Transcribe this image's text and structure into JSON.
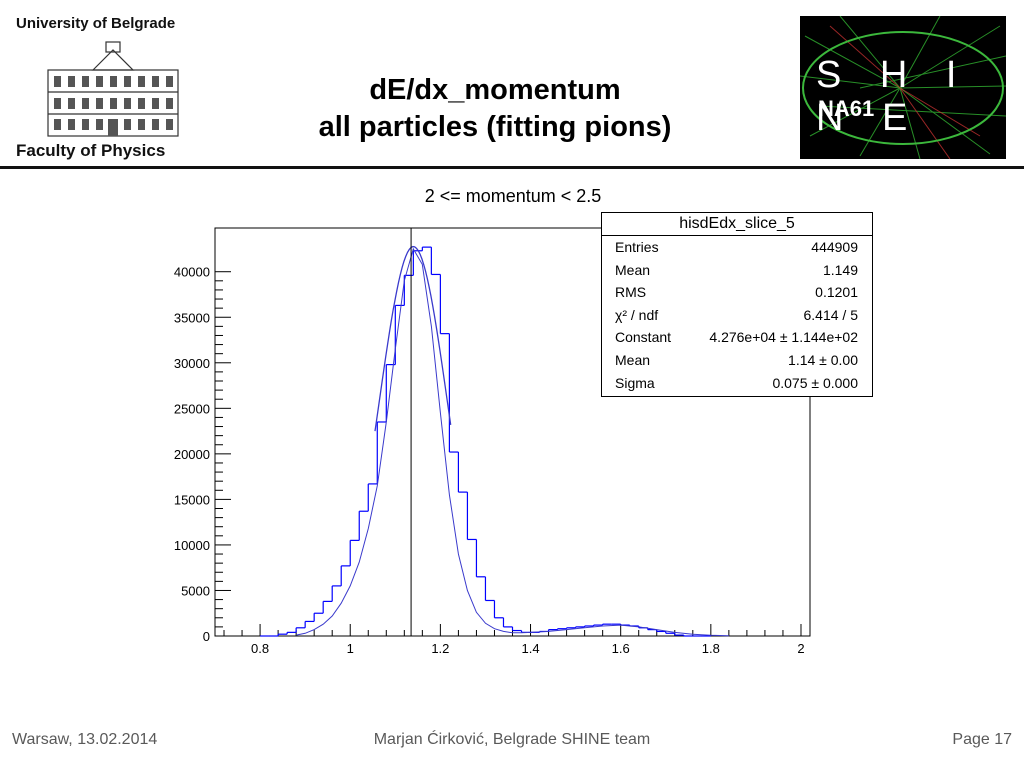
{
  "header": {
    "university": "University of Belgrade",
    "faculty": "Faculty of Physics",
    "title_line1": "dE/dx_momentum",
    "title_line2": "all particles (fitting pions)",
    "logo_main": "S H I N E",
    "logo_sub": "NA61"
  },
  "stats_box": {
    "title": "hisdEdx_slice_5",
    "rows": [
      {
        "label": "Entries",
        "value": "444909"
      },
      {
        "label": "Mean",
        "value": "1.149"
      },
      {
        "label": "RMS",
        "value": "0.1201"
      },
      {
        "label": "χ² / ndf",
        "value": "6.414 / 5"
      },
      {
        "label": "Constant",
        "value": "4.276e+04 ± 1.144e+02"
      },
      {
        "label": "Mean",
        "value": "1.14 ± 0.00"
      },
      {
        "label": "Sigma",
        "value": "0.075 ± 0.000"
      }
    ]
  },
  "footer": {
    "left": "Warsaw, 13.02.2014",
    "center": "Marjan Ćirković, Belgrade SHINE team",
    "right": "Page 17"
  },
  "chart_data": {
    "type": "bar",
    "title": "2 <= momentum < 2.5",
    "xlabel": "",
    "ylabel": "",
    "xlim": [
      0.7,
      2.02
    ],
    "ylim": [
      0,
      44800
    ],
    "x_ticks": [
      0.8,
      1,
      1.2,
      1.4,
      1.6,
      1.8,
      2
    ],
    "x_tick_labels": [
      "0.8",
      "1",
      "1.2",
      "1.4",
      "1.6",
      "1.8",
      "2"
    ],
    "y_ticks": [
      0,
      5000,
      10000,
      15000,
      20000,
      25000,
      30000,
      35000,
      40000
    ],
    "y_tick_labels": [
      "0",
      "5000",
      "10000",
      "15000",
      "20000",
      "25000",
      "30000",
      "35000",
      "40000"
    ],
    "histogram": {
      "bin_width": 0.02,
      "bin_start": 0.8,
      "values": [
        0,
        0,
        200,
        400,
        900,
        1600,
        2500,
        3800,
        5500,
        7700,
        10500,
        13700,
        16700,
        23500,
        29800,
        36300,
        39600,
        42300,
        42700,
        39700,
        33200,
        20200,
        15800,
        10600,
        6500,
        3900,
        2000,
        1000,
        600,
        400,
        400,
        500,
        700,
        800,
        900,
        1000,
        1100,
        1200,
        1300,
        1300,
        1200,
        1100,
        900,
        700,
        500,
        300,
        100,
        0,
        0,
        0
      ]
    },
    "fit": {
      "function": "gaus",
      "constant": 42760,
      "mean": 1.14,
      "sigma": 0.075,
      "x_range": [
        1.055,
        1.225
      ]
    },
    "background_curve": {
      "x": [
        0.88,
        0.9,
        0.92,
        0.94,
        0.96,
        0.98,
        1.0,
        1.02,
        1.04,
        1.06,
        1.08,
        1.1,
        1.12,
        1.14,
        1.16,
        1.18,
        1.2,
        1.22,
        1.24,
        1.26,
        1.28,
        1.3,
        1.32,
        1.34,
        1.36,
        1.38,
        1.4,
        1.44,
        1.48,
        1.52,
        1.56,
        1.6,
        1.64,
        1.68,
        1.72,
        1.76,
        1.8,
        1.84
      ],
      "y": [
        100,
        300,
        700,
        1300,
        2200,
        3600,
        5500,
        8100,
        11800,
        16500,
        23500,
        31500,
        39000,
        42500,
        40800,
        34000,
        24500,
        15500,
        9000,
        5000,
        2600,
        1400,
        800,
        500,
        350,
        350,
        400,
        500,
        700,
        900,
        1100,
        1200,
        1000,
        700,
        400,
        200,
        80,
        20
      ]
    },
    "marker_x": 1.135,
    "colors": {
      "histogram": "#0000ff",
      "fit": "#3a3acc",
      "marker": "#000000",
      "axis": "#000000"
    }
  }
}
